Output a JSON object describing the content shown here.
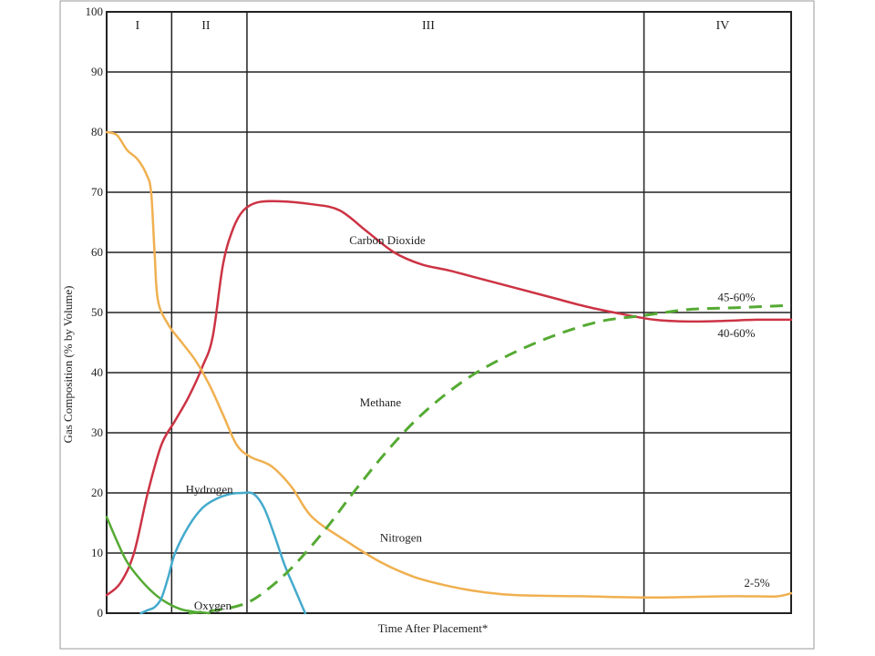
{
  "chart_data": {
    "type": "line",
    "title": "",
    "xlabel": "Time After Placement*",
    "ylabel": "Gas Composition (% by Volume)",
    "ylim": [
      0,
      100
    ],
    "xlim": [
      0,
      100
    ],
    "yticks": [
      "0",
      "10",
      "20",
      "30",
      "40",
      "50",
      "60",
      "70",
      "80",
      "90",
      "100"
    ],
    "grid": true,
    "phase_boundaries": [
      9.5,
      20.5,
      78.5
    ],
    "phases": [
      {
        "label": "I",
        "x": 4.5
      },
      {
        "label": "II",
        "x": 14.5
      },
      {
        "label": "III",
        "x": 47
      },
      {
        "label": "IV",
        "x": 90
      }
    ],
    "annotations": [
      {
        "text": "Carbon Dioxide",
        "x": 41,
        "y": 62
      },
      {
        "text": "45-60%",
        "x": 92,
        "y": 52.5
      },
      {
        "text": "40-60%",
        "x": 92,
        "y": 46.5
      },
      {
        "text": "Methane",
        "x": 40,
        "y": 35
      },
      {
        "text": "Hydrogen",
        "x": 15,
        "y": 20.5
      },
      {
        "text": "Nitrogen",
        "x": 43,
        "y": 12.5
      },
      {
        "text": "Oxygen",
        "x": 15.5,
        "y": 1.2
      },
      {
        "text": "2-5%",
        "x": 95,
        "y": 5
      }
    ],
    "series": [
      {
        "id": "carbon-dioxide",
        "color": "#cc3344",
        "dashed": false,
        "x": [
          0,
          2,
          4,
          6,
          8,
          10,
          12,
          14,
          15.5,
          17,
          18.5,
          20,
          22,
          25,
          30,
          34,
          38,
          42,
          46,
          50,
          55,
          60,
          65,
          70,
          75,
          80,
          85,
          90,
          95,
          100
        ],
        "y": [
          3,
          5,
          10,
          20,
          28,
          32,
          36,
          41,
          46,
          58,
          64,
          67,
          68.3,
          68.5,
          68,
          67,
          63.5,
          60,
          58,
          57,
          55.5,
          54,
          52.5,
          51,
          49.8,
          48.8,
          48.5,
          48.6,
          48.8,
          48.8
        ]
      },
      {
        "id": "nitrogen",
        "color": "#f0b050",
        "dashed": false,
        "x": [
          0,
          1.5,
          3,
          4.5,
          5.8,
          6.5,
          7,
          7.5,
          9,
          11,
          13,
          15,
          17,
          19,
          21,
          24,
          27,
          30,
          35,
          40,
          45,
          50,
          55,
          60,
          70,
          80,
          90,
          95,
          98,
          100
        ],
        "y": [
          80,
          79.5,
          77,
          75.5,
          73,
          70,
          60,
          52,
          48,
          45,
          42,
          38,
          33,
          28,
          26,
          24.5,
          21,
          16,
          12,
          8.5,
          6,
          4.5,
          3.5,
          3,
          2.8,
          2.6,
          2.8,
          2.8,
          2.8,
          3.3
        ]
      },
      {
        "id": "oxygen",
        "color": "#55aa33",
        "dashed": false,
        "x": [
          0,
          1.5,
          3,
          5,
          7,
          9,
          11,
          13,
          14,
          15
        ],
        "y": [
          16,
          12,
          8.5,
          5.5,
          3.2,
          1.6,
          0.6,
          0.2,
          0.1,
          0
        ]
      },
      {
        "id": "hydrogen",
        "color": "#44aacc",
        "dashed": false,
        "x": [
          5,
          6,
          7,
          8,
          9,
          10,
          12,
          14,
          16,
          18,
          20,
          21.5,
          23,
          24.5,
          26,
          27.5,
          29
        ],
        "y": [
          0,
          0.5,
          1,
          2.5,
          6,
          10,
          14.5,
          17.5,
          19,
          19.8,
          20,
          19.8,
          17.5,
          13,
          8,
          4,
          0
        ]
      },
      {
        "id": "methane",
        "color": "#55aa33",
        "dashed": true,
        "x": [
          12,
          16,
          20,
          23,
          27,
          32,
          36,
          41,
          46,
          52,
          58,
          65,
          72,
          78.5,
          85,
          92,
          100
        ],
        "y": [
          0,
          0.5,
          1.5,
          3.5,
          7.5,
          14,
          20,
          27,
          33,
          38.5,
          42.5,
          46,
          48.5,
          49.5,
          50.5,
          50.8,
          51.2
        ]
      }
    ]
  }
}
